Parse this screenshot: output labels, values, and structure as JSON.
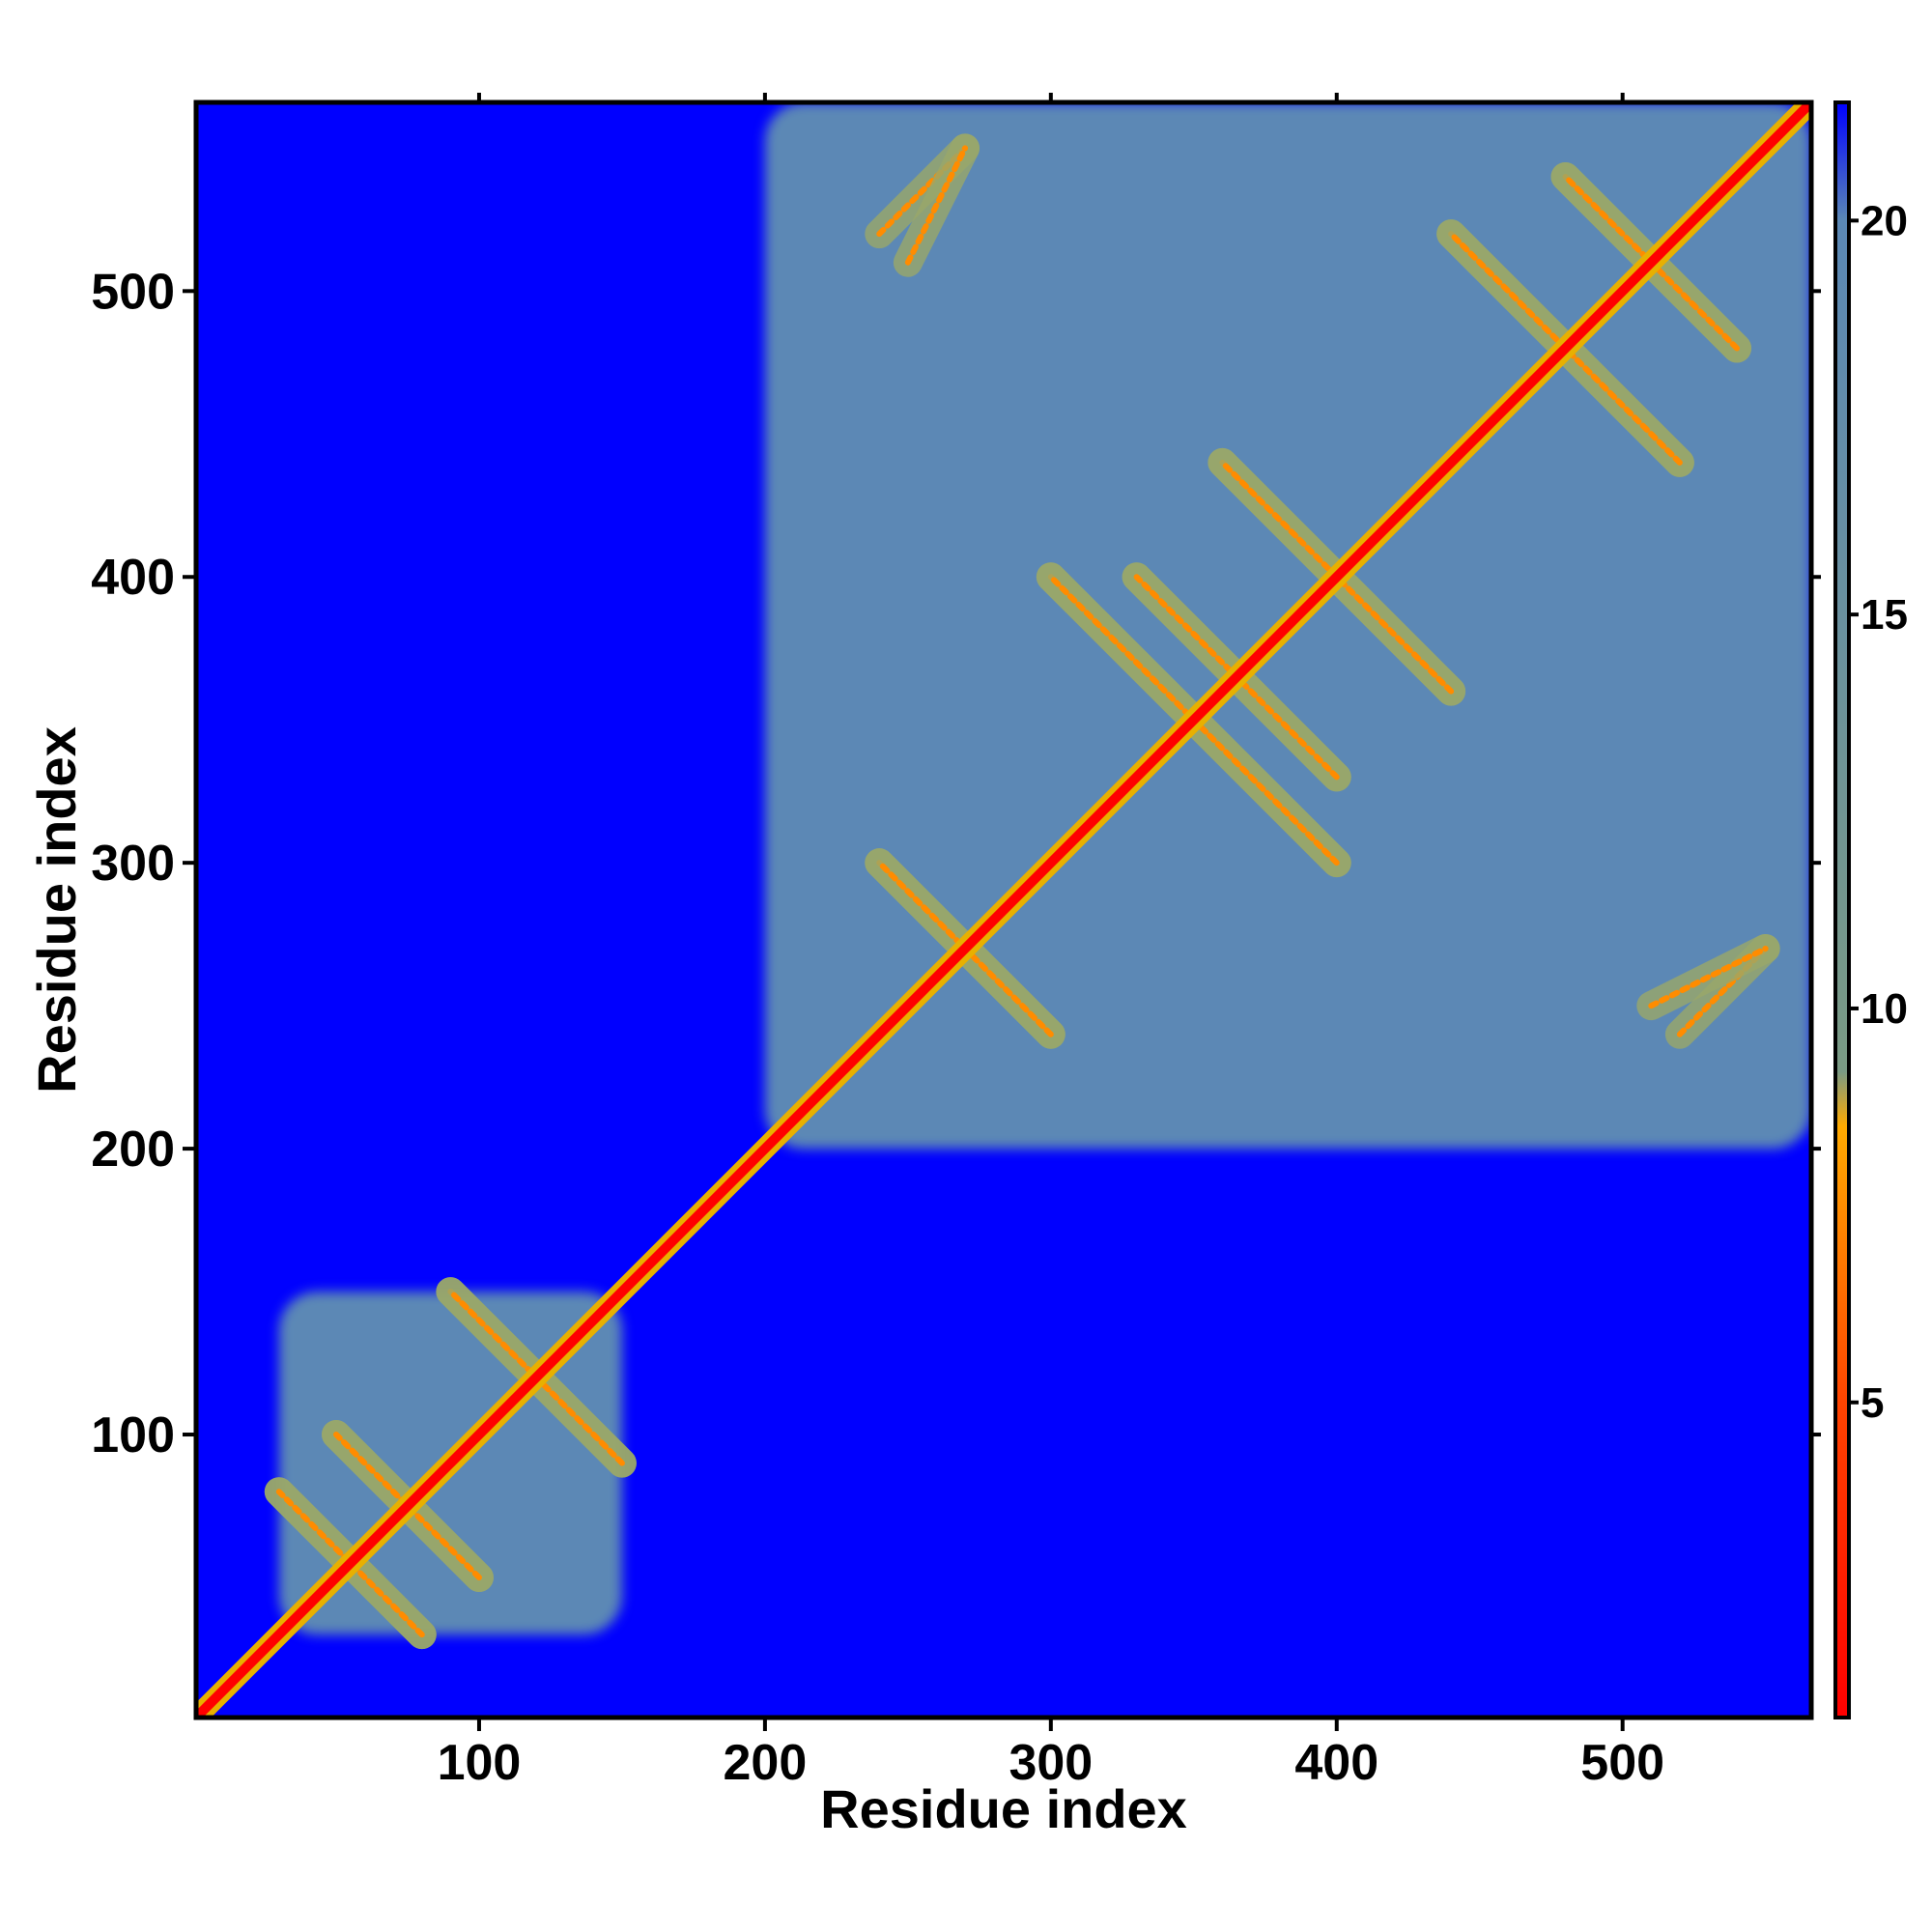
{
  "chart_data": {
    "type": "heatmap",
    "title": "",
    "xlabel": "Residue index",
    "ylabel": "Residue index",
    "xlim": [
      1,
      566
    ],
    "ylim": [
      1,
      566
    ],
    "x_ticks": [
      "100",
      "200",
      "300",
      "400",
      "500"
    ],
    "y_ticks": [
      "100",
      "200",
      "300",
      "400",
      "500"
    ],
    "colorbar": {
      "ticks": [
        "5",
        "10",
        "15",
        "20"
      ],
      "range": [
        1,
        21.5
      ],
      "stops": [
        {
          "value": 1,
          "color": "#ff0000"
        },
        {
          "value": 5,
          "color": "#ff4400"
        },
        {
          "value": 8.5,
          "color": "#ffaa00"
        },
        {
          "value": 9.2,
          "color": "#7a9a84"
        },
        {
          "value": 20,
          "color": "#5b88b5"
        },
        {
          "value": 21.5,
          "color": "#0000ff"
        }
      ]
    },
    "background_value": 21.5,
    "domains": [
      {
        "start": 30,
        "end": 150,
        "value": 17
      },
      {
        "start": 200,
        "end": 566,
        "value": 17
      }
    ],
    "contact_bands": [
      {
        "from": [
          30,
          80
        ],
        "to": [
          80,
          30
        ],
        "value": 7
      },
      {
        "from": [
          90,
          150
        ],
        "to": [
          150,
          90
        ],
        "value": 8
      },
      {
        "from": [
          50,
          100
        ],
        "to": [
          100,
          50
        ],
        "value": 8
      },
      {
        "from": [
          240,
          300
        ],
        "to": [
          300,
          240
        ],
        "value": 7
      },
      {
        "from": [
          300,
          400
        ],
        "to": [
          400,
          300
        ],
        "value": 8
      },
      {
        "from": [
          330,
          400
        ],
        "to": [
          400,
          330
        ],
        "value": 7
      },
      {
        "from": [
          360,
          440
        ],
        "to": [
          440,
          360
        ],
        "value": 8
      },
      {
        "from": [
          440,
          520
        ],
        "to": [
          520,
          440
        ],
        "value": 7
      },
      {
        "from": [
          480,
          540
        ],
        "to": [
          540,
          480
        ],
        "value": 7
      },
      {
        "from": [
          240,
          520
        ],
        "to": [
          270,
          550
        ],
        "value": 8
      },
      {
        "from": [
          510,
          250
        ],
        "to": [
          550,
          270
        ],
        "value": 8
      }
    ]
  },
  "colors": {
    "background": "#0000ff",
    "domain_fill": "#5b88b5",
    "contact": "#ff8c00",
    "diagonal": "#ff0000",
    "frame": "#000000"
  }
}
